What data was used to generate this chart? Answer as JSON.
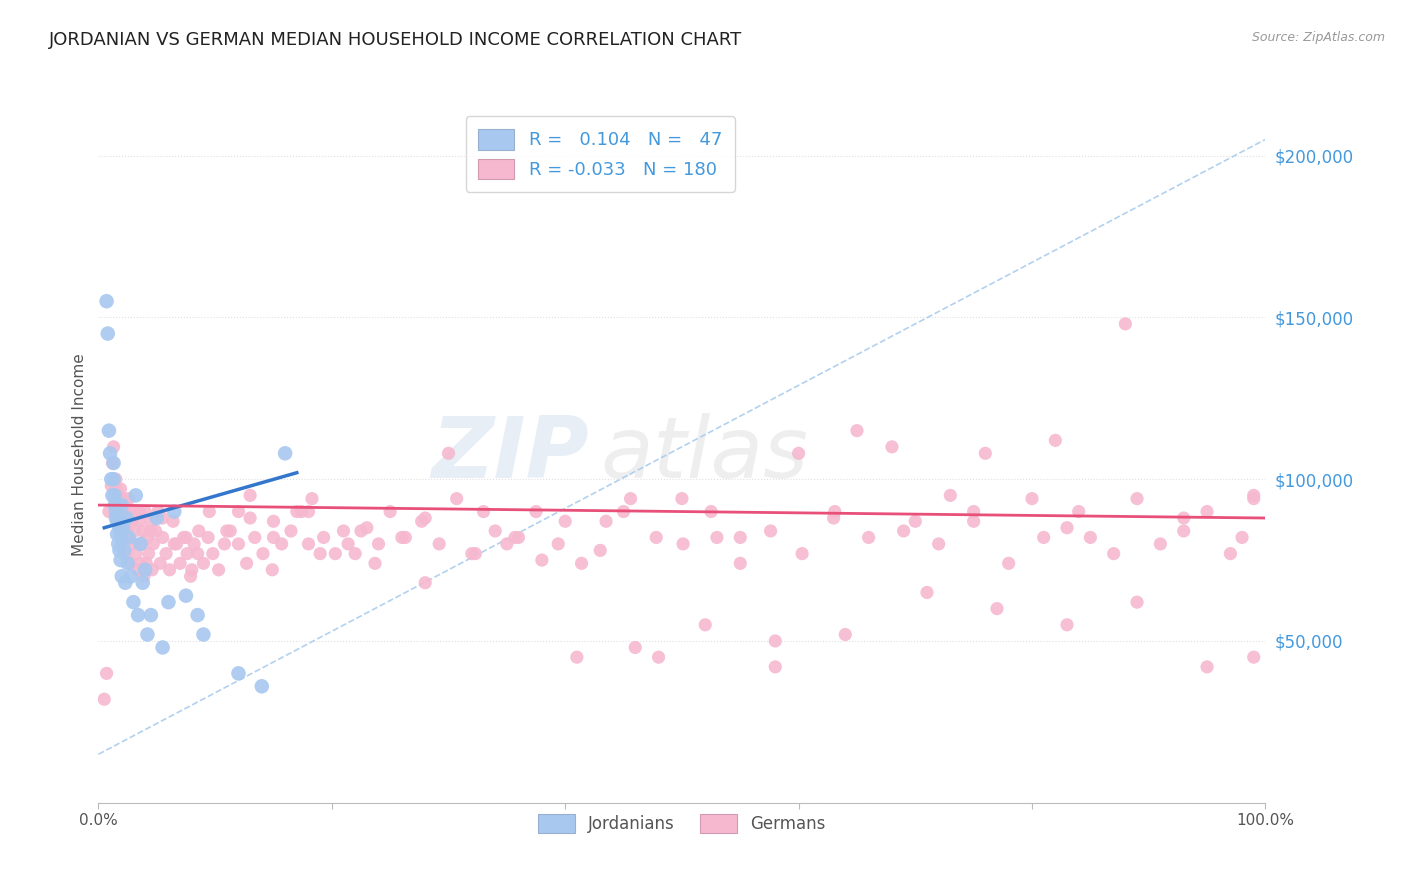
{
  "title": "JORDANIAN VS GERMAN MEDIAN HOUSEHOLD INCOME CORRELATION CHART",
  "source": "Source: ZipAtlas.com",
  "ylabel": "Median Household Income",
  "yticks": [
    0,
    50000,
    100000,
    150000,
    200000
  ],
  "ytick_labels": [
    "",
    "$50,000",
    "$100,000",
    "$150,000",
    "$200,000"
  ],
  "xlim": [
    0.0,
    1.0
  ],
  "ylim": [
    0,
    215000
  ],
  "watermark_zip": "ZIP",
  "watermark_atlas": "atlas",
  "legend_jordan_R": " 0.104",
  "legend_jordan_N": " 47",
  "legend_german_R": "-0.033",
  "legend_german_N": "180",
  "jordan_color": "#a8c8f0",
  "german_color": "#f5b8cf",
  "jordan_line_color": "#3377cc",
  "german_line_color": "#e8507a",
  "diag_line_color": "#aaccee",
  "background_color": "#ffffff",
  "grid_color": "#e0e0e0",
  "title_color": "#222222",
  "axis_label_color": "#555555",
  "tick_color": "#4499dd",
  "bottom_legend_color": "#555555",
  "jordan_x": [
    0.007,
    0.008,
    0.009,
    0.01,
    0.011,
    0.012,
    0.013,
    0.013,
    0.014,
    0.014,
    0.015,
    0.015,
    0.016,
    0.016,
    0.017,
    0.017,
    0.018,
    0.018,
    0.019,
    0.019,
    0.02,
    0.02,
    0.021,
    0.022,
    0.023,
    0.024,
    0.025,
    0.026,
    0.028,
    0.03,
    0.032,
    0.034,
    0.036,
    0.038,
    0.04,
    0.042,
    0.045,
    0.05,
    0.055,
    0.06,
    0.065,
    0.075,
    0.085,
    0.09,
    0.12,
    0.14,
    0.16
  ],
  "jordan_y": [
    155000,
    145000,
    115000,
    108000,
    100000,
    95000,
    105000,
    100000,
    95000,
    92000,
    90000,
    88000,
    87000,
    83000,
    88000,
    80000,
    85000,
    78000,
    82000,
    75000,
    92000,
    70000,
    85000,
    78000,
    68000,
    88000,
    74000,
    82000,
    70000,
    62000,
    95000,
    58000,
    80000,
    68000,
    72000,
    52000,
    58000,
    88000,
    48000,
    62000,
    90000,
    64000,
    58000,
    52000,
    40000,
    36000,
    108000
  ],
  "german_x": [
    0.005,
    0.007,
    0.009,
    0.011,
    0.012,
    0.013,
    0.014,
    0.015,
    0.015,
    0.016,
    0.017,
    0.018,
    0.018,
    0.019,
    0.02,
    0.02,
    0.021,
    0.022,
    0.022,
    0.023,
    0.024,
    0.025,
    0.025,
    0.026,
    0.027,
    0.028,
    0.029,
    0.03,
    0.031,
    0.032,
    0.033,
    0.034,
    0.035,
    0.036,
    0.037,
    0.038,
    0.039,
    0.04,
    0.041,
    0.042,
    0.043,
    0.045,
    0.046,
    0.047,
    0.049,
    0.051,
    0.053,
    0.055,
    0.058,
    0.061,
    0.064,
    0.067,
    0.07,
    0.073,
    0.076,
    0.079,
    0.082,
    0.086,
    0.09,
    0.094,
    0.098,
    0.103,
    0.108,
    0.113,
    0.12,
    0.127,
    0.134,
    0.141,
    0.149,
    0.157,
    0.165,
    0.174,
    0.183,
    0.193,
    0.203,
    0.214,
    0.225,
    0.237,
    0.25,
    0.263,
    0.277,
    0.292,
    0.307,
    0.323,
    0.34,
    0.357,
    0.375,
    0.394,
    0.414,
    0.435,
    0.456,
    0.478,
    0.501,
    0.525,
    0.55,
    0.576,
    0.603,
    0.631,
    0.66,
    0.69,
    0.72,
    0.75,
    0.78,
    0.81,
    0.84,
    0.87,
    0.89,
    0.91,
    0.93,
    0.95,
    0.97,
    0.98,
    0.99,
    0.12,
    0.15,
    0.18,
    0.22,
    0.26,
    0.3,
    0.35,
    0.4,
    0.45,
    0.5,
    0.55,
    0.6,
    0.65,
    0.7,
    0.75,
    0.8,
    0.85,
    0.88,
    0.82,
    0.76,
    0.68,
    0.58,
    0.48,
    0.38,
    0.28,
    0.18,
    0.08,
    0.13,
    0.23,
    0.33,
    0.43,
    0.53,
    0.63,
    0.73,
    0.83,
    0.93,
    0.99,
    0.015,
    0.025,
    0.035,
    0.045,
    0.055,
    0.065,
    0.075,
    0.085,
    0.095,
    0.11,
    0.13,
    0.15,
    0.17,
    0.19,
    0.21,
    0.24,
    0.28,
    0.32,
    0.36,
    0.41,
    0.46,
    0.52,
    0.58,
    0.64,
    0.71,
    0.77,
    0.83,
    0.89,
    0.95,
    0.99
  ],
  "german_y": [
    32000,
    40000,
    90000,
    98000,
    105000,
    110000,
    92000,
    97000,
    100000,
    87000,
    95000,
    90000,
    84000,
    97000,
    87000,
    80000,
    94000,
    84000,
    90000,
    77000,
    92000,
    87000,
    82000,
    94000,
    74000,
    90000,
    87000,
    80000,
    84000,
    77000,
    90000,
    72000,
    87000,
    74000,
    80000,
    84000,
    70000,
    90000,
    74000,
    82000,
    77000,
    87000,
    72000,
    80000,
    84000,
    90000,
    74000,
    82000,
    77000,
    72000,
    87000,
    80000,
    74000,
    82000,
    77000,
    70000,
    80000,
    84000,
    74000,
    82000,
    77000,
    72000,
    80000,
    84000,
    90000,
    74000,
    82000,
    77000,
    72000,
    80000,
    84000,
    90000,
    94000,
    82000,
    77000,
    80000,
    84000,
    74000,
    90000,
    82000,
    87000,
    80000,
    94000,
    77000,
    84000,
    82000,
    90000,
    80000,
    74000,
    87000,
    94000,
    82000,
    80000,
    90000,
    74000,
    84000,
    77000,
    90000,
    82000,
    84000,
    80000,
    87000,
    74000,
    82000,
    90000,
    77000,
    94000,
    80000,
    84000,
    90000,
    77000,
    82000,
    94000,
    80000,
    87000,
    90000,
    77000,
    82000,
    108000,
    80000,
    87000,
    90000,
    94000,
    82000,
    108000,
    115000,
    87000,
    90000,
    94000,
    82000,
    148000,
    112000,
    108000,
    110000,
    42000,
    45000,
    75000,
    68000,
    80000,
    72000,
    95000,
    85000,
    90000,
    78000,
    82000,
    88000,
    95000,
    85000,
    88000,
    95000,
    97000,
    85000,
    90000,
    84000,
    88000,
    80000,
    82000,
    77000,
    90000,
    84000,
    88000,
    82000,
    90000,
    77000,
    84000,
    80000,
    88000,
    77000,
    82000,
    45000,
    48000,
    55000,
    50000,
    52000,
    65000,
    60000,
    55000,
    62000,
    42000,
    45000
  ]
}
